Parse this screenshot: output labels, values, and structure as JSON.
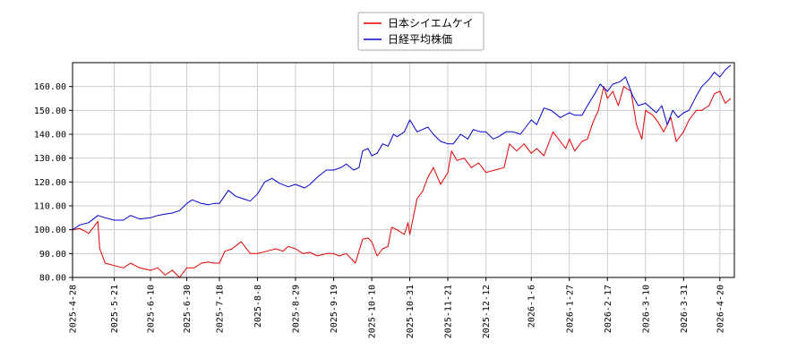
{
  "chart_data": {
    "type": "line",
    "ylim": [
      80,
      170
    ],
    "yticks": [
      "80.00",
      "90.00",
      "100.00",
      "110.00",
      "120.00",
      "130.00",
      "140.00",
      "150.00",
      "160.00"
    ],
    "ytick_values": [
      80,
      90,
      100,
      110,
      120,
      130,
      140,
      150,
      160
    ],
    "xticks": [
      "2025-4-28",
      "2025-5-21",
      "2025-6-10",
      "2025-6-30",
      "2025-7-18",
      "2025-8-8",
      "2025-8-29",
      "2025-9-19",
      "2025-10-10",
      "2025-10-31",
      "2025-11-21",
      "2025-12-12",
      "2026-1-6",
      "2026-1-27",
      "2026-2-17",
      "2026-3-10",
      "2026-3-31",
      "2026-4-20"
    ],
    "x_range": [
      "2025-4-28",
      "2026-4-28"
    ],
    "grid": true,
    "legend_position": "top-center",
    "series": [
      {
        "name": "日本シイエムケイ",
        "color": "#e00000",
        "points": [
          [
            "2025-4-28",
            100
          ],
          [
            "2025-5-2",
            100.5
          ],
          [
            "2025-5-7",
            98.5
          ],
          [
            "2025-5-12",
            103.5
          ],
          [
            "2025-5-13",
            92
          ],
          [
            "2025-5-16",
            86
          ],
          [
            "2025-5-21",
            85
          ],
          [
            "2025-5-26",
            84
          ],
          [
            "2025-5-30",
            86
          ],
          [
            "2025-6-4",
            84
          ],
          [
            "2025-6-10",
            83
          ],
          [
            "2025-6-14",
            84
          ],
          [
            "2025-6-18",
            81
          ],
          [
            "2025-6-22",
            83
          ],
          [
            "2025-6-26",
            80
          ],
          [
            "2025-6-30",
            84
          ],
          [
            "2025-7-4",
            84
          ],
          [
            "2025-7-8",
            86
          ],
          [
            "2025-7-12",
            86.5
          ],
          [
            "2025-7-15",
            86
          ],
          [
            "2025-7-18",
            86
          ],
          [
            "2025-7-21",
            91
          ],
          [
            "2025-7-25",
            92
          ],
          [
            "2025-7-30",
            95
          ],
          [
            "2025-8-4",
            90
          ],
          [
            "2025-8-8",
            90
          ],
          [
            "2025-8-13",
            91
          ],
          [
            "2025-8-18",
            92
          ],
          [
            "2025-8-22",
            91
          ],
          [
            "2025-8-25",
            93
          ],
          [
            "2025-8-29",
            92
          ],
          [
            "2025-9-2",
            90
          ],
          [
            "2025-9-6",
            90.5
          ],
          [
            "2025-9-10",
            89
          ],
          [
            "2025-9-15",
            90
          ],
          [
            "2025-9-19",
            90
          ],
          [
            "2025-9-22",
            89
          ],
          [
            "2025-9-26",
            90
          ],
          [
            "2025-10-1",
            86
          ],
          [
            "2025-10-5",
            96
          ],
          [
            "2025-10-8",
            96.5
          ],
          [
            "2025-10-10",
            95
          ],
          [
            "2025-10-13",
            89
          ],
          [
            "2025-10-16",
            92
          ],
          [
            "2025-10-19",
            93
          ],
          [
            "2025-10-21",
            101
          ],
          [
            "2025-10-24",
            100
          ],
          [
            "2025-10-28",
            98
          ],
          [
            "2025-10-30",
            103
          ],
          [
            "2025-10-31",
            98
          ],
          [
            "2025-11-4",
            113
          ],
          [
            "2025-11-7",
            116
          ],
          [
            "2025-11-10",
            122
          ],
          [
            "2025-11-13",
            126
          ],
          [
            "2025-11-17",
            119
          ],
          [
            "2025-11-21",
            124
          ],
          [
            "2025-11-23",
            133
          ],
          [
            "2025-11-26",
            129
          ],
          [
            "2025-11-30",
            130
          ],
          [
            "2025-12-4",
            126
          ],
          [
            "2025-12-8",
            128
          ],
          [
            "2025-12-12",
            124
          ],
          [
            "2025-12-17",
            125
          ],
          [
            "2025-12-22",
            126
          ],
          [
            "2025-12-25",
            136
          ],
          [
            "2025-12-29",
            133
          ],
          [
            "2026-1-2",
            136
          ],
          [
            "2026-1-6",
            132
          ],
          [
            "2026-1-9",
            134
          ],
          [
            "2026-1-13",
            131
          ],
          [
            "2026-1-18",
            141
          ],
          [
            "2026-1-22",
            137
          ],
          [
            "2026-1-25",
            134
          ],
          [
            "2026-1-27",
            138
          ],
          [
            "2026-1-30",
            133
          ],
          [
            "2026-2-3",
            137
          ],
          [
            "2026-2-6",
            138
          ],
          [
            "2026-2-9",
            145
          ],
          [
            "2026-2-12",
            150
          ],
          [
            "2026-2-15",
            160
          ],
          [
            "2026-2-17",
            155
          ],
          [
            "2026-2-20",
            158
          ],
          [
            "2026-2-23",
            152
          ],
          [
            "2026-2-26",
            160
          ],
          [
            "2026-3-2",
            158
          ],
          [
            "2026-3-5",
            144
          ],
          [
            "2026-3-8",
            138
          ],
          [
            "2026-3-10",
            150
          ],
          [
            "2026-3-14",
            148
          ],
          [
            "2026-3-17",
            145
          ],
          [
            "2026-3-20",
            141
          ],
          [
            "2026-3-24",
            147
          ],
          [
            "2026-3-27",
            137
          ],
          [
            "2026-3-31",
            141
          ],
          [
            "2026-4-3",
            146
          ],
          [
            "2026-4-7",
            150
          ],
          [
            "2026-4-10",
            150
          ],
          [
            "2026-4-14",
            152
          ],
          [
            "2026-4-17",
            157
          ],
          [
            "2026-4-20",
            158
          ],
          [
            "2026-4-23",
            153
          ],
          [
            "2026-4-26",
            155
          ]
        ]
      },
      {
        "name": "日経平均株価",
        "color": "#0000cc",
        "points": [
          [
            "2025-4-28",
            100
          ],
          [
            "2025-5-2",
            102
          ],
          [
            "2025-5-7",
            103
          ],
          [
            "2025-5-12",
            106
          ],
          [
            "2025-5-16",
            105
          ],
          [
            "2025-5-21",
            104
          ],
          [
            "2025-5-26",
            104
          ],
          [
            "2025-5-30",
            106
          ],
          [
            "2025-6-4",
            104.5
          ],
          [
            "2025-6-10",
            105
          ],
          [
            "2025-6-14",
            106
          ],
          [
            "2025-6-18",
            106.5
          ],
          [
            "2025-6-22",
            107
          ],
          [
            "2025-6-26",
            108
          ],
          [
            "2025-6-30",
            111
          ],
          [
            "2025-7-3",
            112.5
          ],
          [
            "2025-7-8",
            111
          ],
          [
            "2025-7-12",
            110.5
          ],
          [
            "2025-7-15",
            111
          ],
          [
            "2025-7-18",
            111
          ],
          [
            "2025-7-23",
            116.5
          ],
          [
            "2025-7-27",
            114
          ],
          [
            "2025-7-31",
            113
          ],
          [
            "2025-8-4",
            112
          ],
          [
            "2025-8-8",
            115
          ],
          [
            "2025-8-12",
            120
          ],
          [
            "2025-8-16",
            121.5
          ],
          [
            "2025-8-20",
            119.5
          ],
          [
            "2025-8-25",
            118
          ],
          [
            "2025-8-29",
            119
          ],
          [
            "2025-9-3",
            117.5
          ],
          [
            "2025-9-6",
            119
          ],
          [
            "2025-9-10",
            122
          ],
          [
            "2025-9-15",
            125
          ],
          [
            "2025-9-19",
            125
          ],
          [
            "2025-9-23",
            126
          ],
          [
            "2025-9-26",
            127.5
          ],
          [
            "2025-9-30",
            125
          ],
          [
            "2025-10-3",
            126
          ],
          [
            "2025-10-5",
            133
          ],
          [
            "2025-10-8",
            134
          ],
          [
            "2025-10-10",
            131
          ],
          [
            "2025-10-13",
            132
          ],
          [
            "2025-10-16",
            136
          ],
          [
            "2025-10-19",
            135
          ],
          [
            "2025-10-22",
            140
          ],
          [
            "2025-10-24",
            139
          ],
          [
            "2025-10-28",
            141
          ],
          [
            "2025-10-31",
            146
          ],
          [
            "2025-11-4",
            141
          ],
          [
            "2025-11-7",
            142
          ],
          [
            "2025-11-10",
            143
          ],
          [
            "2025-11-13",
            140
          ],
          [
            "2025-11-17",
            137
          ],
          [
            "2025-11-21",
            136
          ],
          [
            "2025-11-24",
            136
          ],
          [
            "2025-11-28",
            140
          ],
          [
            "2025-12-2",
            138
          ],
          [
            "2025-12-5",
            142
          ],
          [
            "2025-12-9",
            141
          ],
          [
            "2025-12-12",
            141
          ],
          [
            "2025-12-16",
            138
          ],
          [
            "2025-12-19",
            139
          ],
          [
            "2025-12-23",
            141
          ],
          [
            "2025-12-27",
            141
          ],
          [
            "2025-12-31",
            140
          ],
          [
            "2026-1-6",
            146
          ],
          [
            "2026-1-9",
            144
          ],
          [
            "2026-1-13",
            151
          ],
          [
            "2026-1-17",
            150
          ],
          [
            "2026-1-22",
            147
          ],
          [
            "2026-1-27",
            149
          ],
          [
            "2026-1-30",
            148
          ],
          [
            "2026-2-3",
            148
          ],
          [
            "2026-2-6",
            152
          ],
          [
            "2026-2-10",
            157
          ],
          [
            "2026-2-13",
            161
          ],
          [
            "2026-2-17",
            158
          ],
          [
            "2026-2-20",
            161
          ],
          [
            "2026-2-24",
            162
          ],
          [
            "2026-2-27",
            164
          ],
          [
            "2026-3-3",
            156
          ],
          [
            "2026-3-6",
            152
          ],
          [
            "2026-3-10",
            153
          ],
          [
            "2026-3-13",
            151
          ],
          [
            "2026-3-16",
            149
          ],
          [
            "2026-3-19",
            152
          ],
          [
            "2026-3-22",
            144
          ],
          [
            "2026-3-25",
            150
          ],
          [
            "2026-3-28",
            147
          ],
          [
            "2026-3-31",
            149
          ],
          [
            "2026-4-3",
            150
          ],
          [
            "2026-4-7",
            156
          ],
          [
            "2026-4-10",
            160
          ],
          [
            "2026-4-14",
            163
          ],
          [
            "2026-4-17",
            166
          ],
          [
            "2026-4-20",
            164
          ],
          [
            "2026-4-23",
            167
          ],
          [
            "2026-4-26",
            169
          ]
        ]
      }
    ]
  }
}
